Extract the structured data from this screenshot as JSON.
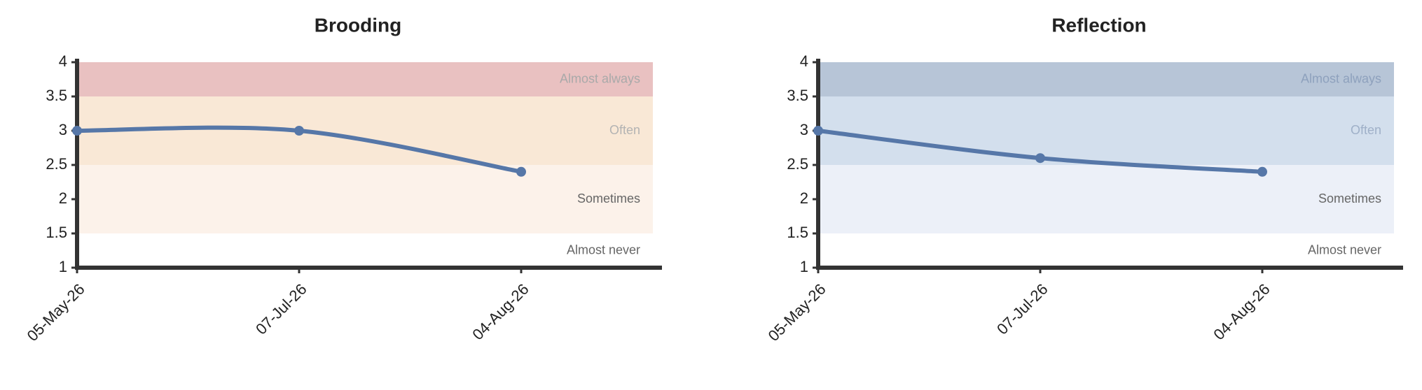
{
  "chart_data": [
    {
      "type": "line",
      "title": "Brooding",
      "categories": [
        "05-May-26",
        "07-Jul-26",
        "04-Aug-26"
      ],
      "values": [
        3,
        3,
        2.4
      ],
      "color": "#5677a8",
      "ylim": [
        1,
        4
      ],
      "yticks": [
        1,
        1.5,
        2,
        2.5,
        3,
        3.5,
        4
      ],
      "bands": [
        {
          "label": "Almost always",
          "range": [
            3.5,
            4
          ],
          "color": "#e9c1c1",
          "label_color": "#a9a9a9"
        },
        {
          "label": "Often",
          "range": [
            2.5,
            3.5
          ],
          "color": "#f9e8d6",
          "label_color": "#b3b3b3"
        },
        {
          "label": "Sometimes",
          "range": [
            1.5,
            2.5
          ],
          "color": "#fcf2ea",
          "label_color": "#666666"
        },
        {
          "label": "Almost never",
          "range": [
            1,
            1.5
          ],
          "color": "#ffffff",
          "label_color": "#666666"
        }
      ]
    },
    {
      "type": "line",
      "title": "Reflection",
      "categories": [
        "05-May-26",
        "07-Jul-26",
        "04-Aug-26"
      ],
      "values": [
        3,
        2.6,
        2.4
      ],
      "color": "#5677a8",
      "ylim": [
        1,
        4
      ],
      "yticks": [
        1,
        1.5,
        2,
        2.5,
        3,
        3.5,
        4
      ],
      "bands": [
        {
          "label": "Almost always",
          "range": [
            3.5,
            4
          ],
          "color": "#b7c5d7",
          "label_color": "#8ea1bd"
        },
        {
          "label": "Often",
          "range": [
            2.5,
            3.5
          ],
          "color": "#d3dfed",
          "label_color": "#9fb0c8"
        },
        {
          "label": "Sometimes",
          "range": [
            1.5,
            2.5
          ],
          "color": "#ecf0f8",
          "label_color": "#666666"
        },
        {
          "label": "Almost never",
          "range": [
            1,
            1.5
          ],
          "color": "#ffffff",
          "label_color": "#666666"
        }
      ]
    }
  ]
}
